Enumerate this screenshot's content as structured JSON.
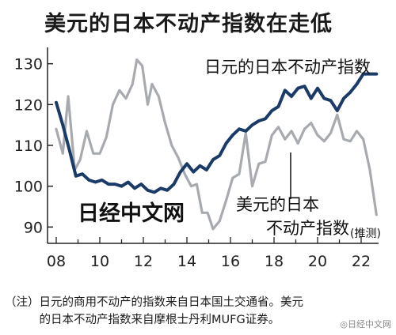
{
  "chart_data": {
    "type": "line",
    "title": "美元的日本不动产指数在走低",
    "x_tick_labels": [
      "08",
      "10",
      "12",
      "14",
      "16",
      "18",
      "20",
      "22"
    ],
    "x_ticks": [
      2008,
      2010,
      2012,
      2014,
      2016,
      2018,
      2020,
      2022
    ],
    "y_ticks": [
      90,
      100,
      110,
      120,
      130
    ],
    "xlim": [
      2007.6,
      2022.8
    ],
    "ylim": [
      86,
      134
    ],
    "grid": false,
    "series": [
      {
        "name": "日元的日本不动产指数",
        "color": "#1a3a68",
        "x": [
          2008.0,
          2008.3,
          2008.6,
          2008.9,
          2009.2,
          2009.5,
          2009.8,
          2010.1,
          2010.4,
          2010.7,
          2011.0,
          2011.3,
          2011.6,
          2011.9,
          2012.2,
          2012.5,
          2012.8,
          2013.1,
          2013.4,
          2013.7,
          2014.0,
          2014.3,
          2014.6,
          2014.9,
          2015.2,
          2015.5,
          2015.8,
          2016.1,
          2016.4,
          2016.7,
          2017.0,
          2017.3,
          2017.6,
          2017.9,
          2018.2,
          2018.5,
          2018.8,
          2019.1,
          2019.4,
          2019.7,
          2020.0,
          2020.3,
          2020.6,
          2020.9,
          2021.2,
          2021.5,
          2021.8,
          2022.1,
          2022.4,
          2022.7
        ],
        "values": [
          120.5,
          115,
          109,
          102.5,
          103,
          101.5,
          101,
          101.5,
          100.5,
          100.5,
          100,
          101,
          99.5,
          100.5,
          99,
          98.5,
          99.5,
          99,
          100.5,
          103.5,
          105.5,
          103.5,
          105,
          104,
          106.5,
          107.5,
          110.5,
          112.5,
          114,
          113.5,
          115,
          116,
          116.5,
          118.5,
          119.5,
          123.5,
          122,
          124,
          124.5,
          121.5,
          124,
          121.5,
          121,
          118.5,
          121.5,
          123,
          125,
          127.5,
          127.5,
          127.5
        ]
      },
      {
        "name": "美元的日本不动产指数",
        "color": "#a7abb0",
        "x": [
          2008.0,
          2008.3,
          2008.55,
          2008.85,
          2009.1,
          2009.4,
          2009.7,
          2010.0,
          2010.3,
          2010.6,
          2010.9,
          2011.2,
          2011.5,
          2011.7,
          2011.95,
          2012.2,
          2012.4,
          2012.7,
          2013.0,
          2013.3,
          2013.6,
          2013.9,
          2014.2,
          2014.45,
          2014.7,
          2014.95,
          2015.2,
          2015.5,
          2015.8,
          2016.1,
          2016.4,
          2016.7,
          2017.0,
          2017.3,
          2017.6,
          2017.9,
          2018.2,
          2018.5,
          2018.8,
          2019.1,
          2019.4,
          2019.7,
          2020.0,
          2020.3,
          2020.6,
          2020.9,
          2021.2,
          2021.5,
          2021.8,
          2022.1,
          2022.4,
          2022.7
        ],
        "values": [
          114,
          108,
          122,
          104,
          106.5,
          113.5,
          108,
          108,
          112,
          120,
          123.5,
          121.5,
          125,
          131,
          129.5,
          120,
          125,
          122,
          115.5,
          110,
          107,
          103,
          100,
          100.5,
          93.5,
          93.5,
          89.5,
          91.5,
          96.5,
          102,
          103,
          113,
          100,
          105.5,
          106,
          112.5,
          114.5,
          111.5,
          113.5,
          110.5,
          114,
          115.5,
          112.5,
          111,
          113,
          117.5,
          111.5,
          111,
          113.5,
          111.5,
          104,
          93
        ]
      }
    ],
    "annotations": {
      "yen_label": "日元的日本不动产指数",
      "usd_label_line1": "美元的日本",
      "usd_label_line2": "不动产指数",
      "estimate_note": "(推测)"
    }
  },
  "watermark": "日经中文网",
  "footnote": {
    "line1": "（注）日元的商用不动产的指数来自日本国土交通省。美元",
    "line2": "　　　的日本不动产指数来自摩根士丹利MUFG证券。"
  },
  "source_mark": "◎日经中文网"
}
